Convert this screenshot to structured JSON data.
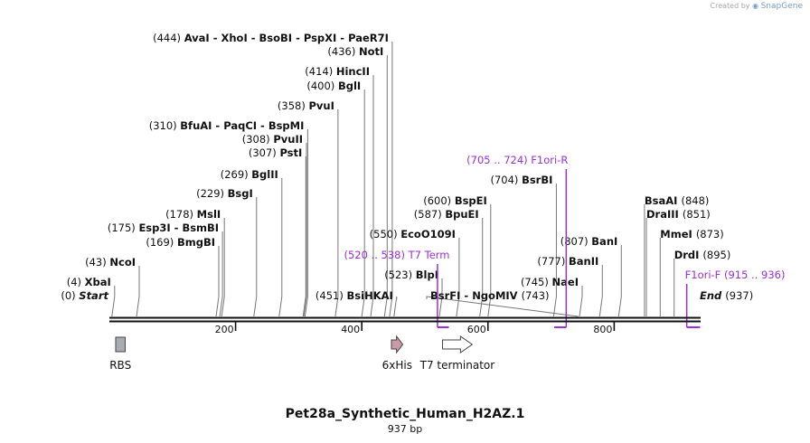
{
  "branding": {
    "prefix": "Created by",
    "name": "SnapGene"
  },
  "title": "Pet28a_Synthetic_Human_H2AZ.1",
  "length_label": "937 bp",
  "scale": {
    "start": 0,
    "end": 937,
    "ticks": [
      200,
      400,
      600,
      800
    ]
  },
  "sites": [
    {
      "name": "Start",
      "pos": 0,
      "label": "(0)",
      "kind": "endpoint"
    },
    {
      "name": "XbaI",
      "pos": 4,
      "label": "(4)"
    },
    {
      "name": "NcoI",
      "pos": 43,
      "label": "(43)"
    },
    {
      "name": "BmgBI",
      "pos": 169,
      "label": "(169)"
    },
    {
      "name": "Esp3I  - BsmBI",
      "pos": 175,
      "label": "(175)"
    },
    {
      "name": "MslI",
      "pos": 178,
      "label": "(178)"
    },
    {
      "name": "BsgI",
      "pos": 229,
      "label": "(229)"
    },
    {
      "name": "BglII",
      "pos": 269,
      "label": "(269)"
    },
    {
      "name": "PstI",
      "pos": 307,
      "label": "(307)"
    },
    {
      "name": "PvuII",
      "pos": 308,
      "label": "(308)"
    },
    {
      "name": "BfuAI  - PaqCI  - BspMI",
      "pos": 310,
      "label": "(310)"
    },
    {
      "name": "PvuI",
      "pos": 358,
      "label": "(358)"
    },
    {
      "name": "BglI",
      "pos": 400,
      "label": "(400)"
    },
    {
      "name": "HincII",
      "pos": 414,
      "label": "(414)"
    },
    {
      "name": "NotI",
      "pos": 436,
      "label": "(436)"
    },
    {
      "name": "AvaI  - XhoI  - BsoBI  - PspXI  - PaeR7I",
      "pos": 444,
      "label": "(444)"
    },
    {
      "name": "BsiHKAI",
      "pos": 451,
      "label": "(451)"
    },
    {
      "name": "BlpI",
      "pos": 523,
      "label": "(523)"
    },
    {
      "name": "EcoO109I",
      "pos": 550,
      "label": "(550)"
    },
    {
      "name": "BpuEI",
      "pos": 587,
      "label": "(587)"
    },
    {
      "name": "BspEI",
      "pos": 600,
      "label": "(600)"
    },
    {
      "name": "BsrBI",
      "pos": 704,
      "label": "(704)"
    },
    {
      "name": "BsrFI  - NgoMIV",
      "pos": 743,
      "label": "(743)"
    },
    {
      "name": "NaeI",
      "pos": 745,
      "label": "(745)"
    },
    {
      "name": "BanII",
      "pos": 777,
      "label": "(777)"
    },
    {
      "name": "BanI",
      "pos": 807,
      "label": "(807)"
    },
    {
      "name": "BsaAI",
      "pos": 848,
      "label": "(848)"
    },
    {
      "name": "DraIII",
      "pos": 851,
      "label": "(851)"
    },
    {
      "name": "MmeI",
      "pos": 873,
      "label": "(873)"
    },
    {
      "name": "DrdI",
      "pos": 895,
      "label": "(895)"
    },
    {
      "name": "End",
      "pos": 937,
      "label": "(937)",
      "kind": "endpoint"
    }
  ],
  "primers": [
    {
      "name": "T7 Term",
      "range": "(520 .. 538)",
      "start": 520,
      "end": 538,
      "direction": "forward"
    },
    {
      "name": "F1ori-R",
      "range": "(705 .. 724)",
      "start": 705,
      "end": 724,
      "direction": "reverse"
    },
    {
      "name": "F1ori-F",
      "range": "(915 .. 936)",
      "start": 915,
      "end": 936,
      "direction": "forward"
    }
  ],
  "features": [
    {
      "name": "RBS",
      "start": 10,
      "end": 25,
      "shape": "box",
      "color": "#a9adb3"
    },
    {
      "name": "6xHis",
      "start": 447,
      "end": 465,
      "shape": "arrow",
      "color": "#c99aa8"
    },
    {
      "name": "T7 terminator",
      "start": 528,
      "end": 575,
      "shape": "arrow",
      "color": "#ffffff"
    }
  ],
  "colors": {
    "primer": "#9b30d9",
    "text": "#111111",
    "backbone": "#111111"
  }
}
